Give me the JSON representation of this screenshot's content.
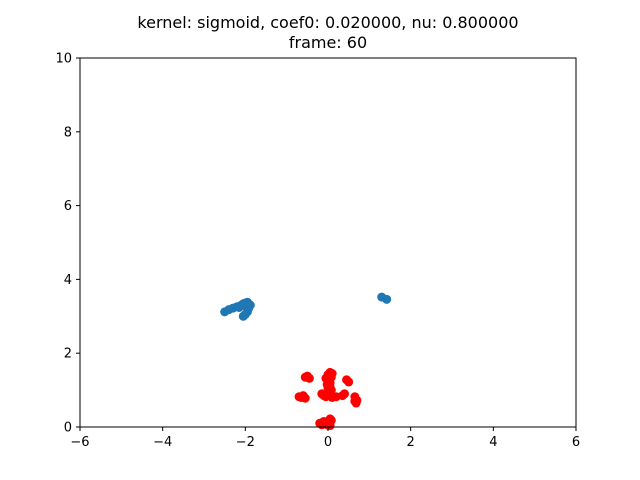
{
  "chart_data": {
    "type": "scatter",
    "title_line1": "kernel:  sigmoid, coef0: 0.020000, nu:  0.800000",
    "title_line2": "frame: 60",
    "xlabel": "",
    "ylabel": "",
    "xlim": [
      -6,
      6
    ],
    "ylim": [
      0,
      10
    ],
    "grid": false,
    "x_ticks": [
      -6,
      -4,
      -2,
      0,
      2,
      4,
      6
    ],
    "y_ticks": [
      0,
      2,
      4,
      6,
      8,
      10
    ],
    "series": [
      {
        "color": "#1f77b4",
        "points": [
          [
            -2.5,
            3.12
          ],
          [
            -2.4,
            3.18
          ],
          [
            -2.3,
            3.22
          ],
          [
            -2.2,
            3.26
          ],
          [
            -2.15,
            3.24
          ],
          [
            -2.1,
            3.3
          ],
          [
            -2.05,
            3.34
          ],
          [
            -2.0,
            3.36
          ],
          [
            -1.95,
            3.38
          ],
          [
            -1.9,
            3.32
          ],
          [
            -2.0,
            3.28
          ],
          [
            -1.92,
            3.22
          ],
          [
            -1.95,
            3.12
          ],
          [
            -2.0,
            3.05
          ],
          [
            -2.05,
            3.0
          ],
          [
            -1.88,
            3.3
          ],
          [
            1.3,
            3.52
          ],
          [
            1.42,
            3.46
          ]
        ]
      },
      {
        "color": "#ff0000",
        "points": [
          [
            0.05,
            1.48
          ],
          [
            0.1,
            1.45
          ],
          [
            0.0,
            1.42
          ],
          [
            0.08,
            1.35
          ],
          [
            -0.05,
            1.32
          ],
          [
            0.02,
            1.28
          ],
          [
            0.05,
            1.2
          ],
          [
            -0.02,
            1.15
          ],
          [
            0.05,
            1.1
          ],
          [
            0.0,
            1.05
          ],
          [
            0.08,
            1.0
          ],
          [
            0.45,
            1.28
          ],
          [
            0.5,
            1.22
          ],
          [
            -0.5,
            1.38
          ],
          [
            -0.45,
            1.32
          ],
          [
            -0.55,
            1.35
          ],
          [
            -0.6,
            0.85
          ],
          [
            -0.65,
            0.8
          ],
          [
            -0.55,
            0.78
          ],
          [
            -0.7,
            0.82
          ],
          [
            -0.15,
            0.9
          ],
          [
            -0.1,
            0.85
          ],
          [
            -0.05,
            0.82
          ],
          [
            0.0,
            0.88
          ],
          [
            0.1,
            0.8
          ],
          [
            0.2,
            0.82
          ],
          [
            0.35,
            0.85
          ],
          [
            0.4,
            0.9
          ],
          [
            0.65,
            0.82
          ],
          [
            0.7,
            0.72
          ],
          [
            0.68,
            0.65
          ],
          [
            0.65,
            0.7
          ],
          [
            0.05,
            0.22
          ],
          [
            0.08,
            0.18
          ],
          [
            -0.1,
            0.15
          ],
          [
            -0.2,
            0.1
          ],
          [
            -0.05,
            0.08
          ],
          [
            0.0,
            0.05
          ],
          [
            0.05,
            0.04
          ],
          [
            -0.15,
            0.06
          ]
        ]
      }
    ]
  }
}
